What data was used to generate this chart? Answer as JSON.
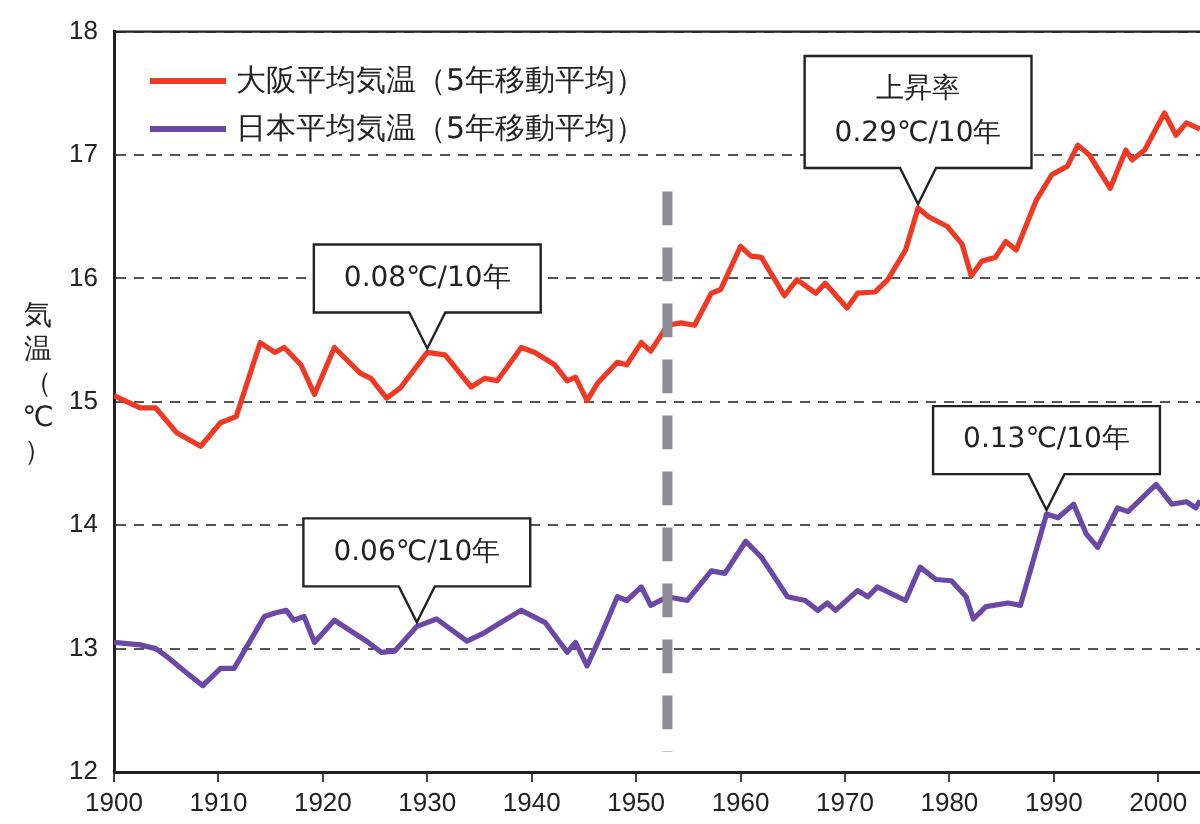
{
  "chart_data": {
    "type": "line",
    "ylabel": "気温（℃）",
    "series": [
      {
        "name": "大阪平均気温（5年移動平均）",
        "color": "#ee3a24",
        "x": [
          1900,
          1902.5,
          1904,
          1906,
          1908.3,
          1910.2,
          1911.7,
          1914,
          1915.4,
          1916.3,
          1917.9,
          1919.2,
          1921.1,
          1923.6,
          1924.6,
          1926.1,
          1927.4,
          1930,
          1931.7,
          1934.2,
          1935.5,
          1936.7,
          1939,
          1940.3,
          1942.2,
          1943.4,
          1944.2,
          1945.3,
          1946.3,
          1948.2,
          1949.1,
          1950.5,
          1951.4,
          1953,
          1954.3,
          1955.6,
          1957.2,
          1958.1,
          1960,
          1961,
          1962,
          1964.2,
          1965.4,
          1967.2,
          1968.1,
          1970.2,
          1971.2,
          1972.9,
          1974.1,
          1975.8,
          1977,
          1978,
          1979.8,
          1981.2,
          1982.1,
          1983.1,
          1984.4,
          1985.4,
          1986.4,
          1988.3,
          1989.8,
          1991.3,
          1992.3,
          1993.4,
          1995.4,
          1996.9,
          1997.5,
          1998.7,
          2000.6,
          2001.7,
          2002.7,
          2004
        ],
        "values": [
          15.05,
          14.95,
          14.95,
          14.75,
          14.64,
          14.83,
          14.88,
          15.48,
          15.4,
          15.44,
          15.3,
          15.06,
          15.44,
          15.23,
          15.19,
          15.03,
          15.11,
          15.4,
          15.38,
          15.12,
          15.19,
          15.17,
          15.44,
          15.4,
          15.3,
          15.17,
          15.2,
          15.01,
          15.15,
          15.32,
          15.3,
          15.48,
          15.41,
          15.62,
          15.64,
          15.62,
          15.88,
          15.91,
          16.26,
          16.18,
          16.17,
          15.86,
          15.99,
          15.88,
          15.96,
          15.76,
          15.88,
          15.89,
          15.99,
          16.23,
          16.57,
          16.5,
          16.42,
          16.28,
          16.02,
          16.14,
          16.17,
          16.3,
          16.23,
          16.63,
          16.84,
          16.91,
          17.08,
          17.0,
          16.73,
          17.04,
          16.96,
          17.04,
          17.34,
          17.16,
          17.26,
          17.21
        ]
      },
      {
        "name": "日本平均気温（5年移動平均）",
        "color": "#6a48a6",
        "x": [
          1900,
          1902.5,
          1904,
          1905,
          1907,
          1908.5,
          1910.2,
          1911.5,
          1914.4,
          1915.5,
          1916.5,
          1917.2,
          1918.2,
          1919.2,
          1921.1,
          1924.2,
          1925.6,
          1926.9,
          1929,
          1930.9,
          1933.8,
          1935.5,
          1937,
          1939,
          1941.3,
          1943.4,
          1944.2,
          1945.3,
          1946.6,
          1948.2,
          1949.1,
          1950.5,
          1951.4,
          1953,
          1954.9,
          1957.2,
          1958.5,
          1960.5,
          1962,
          1964.5,
          1966.2,
          1967.4,
          1968.3,
          1969.1,
          1971.2,
          1972.2,
          1973.1,
          1975.8,
          1977.2,
          1978.7,
          1980.2,
          1981.6,
          1982.3,
          1983.5,
          1985.6,
          1986.8,
          1989.3,
          1990.4,
          1991.9,
          1993.1,
          1994.2,
          1996.1,
          1997.1,
          1999.8,
          2001.3,
          2002.7,
          2003.6,
          2004
        ],
        "values": [
          13.05,
          13.03,
          13.0,
          12.94,
          12.8,
          12.7,
          12.84,
          12.84,
          13.26,
          13.29,
          13.31,
          13.23,
          13.26,
          13.05,
          13.23,
          13.06,
          12.97,
          12.98,
          13.18,
          13.24,
          13.06,
          13.13,
          13.21,
          13.31,
          13.21,
          12.97,
          13.05,
          12.86,
          13.1,
          13.42,
          13.39,
          13.5,
          13.35,
          13.42,
          13.39,
          13.63,
          13.61,
          13.87,
          13.74,
          13.42,
          13.39,
          13.31,
          13.37,
          13.31,
          13.47,
          13.42,
          13.5,
          13.39,
          13.66,
          13.56,
          13.55,
          13.42,
          13.24,
          13.34,
          13.37,
          13.35,
          14.09,
          14.06,
          14.17,
          13.93,
          13.82,
          14.14,
          14.11,
          14.33,
          14.17,
          14.19,
          14.14,
          14.2
        ]
      }
    ],
    "xlim": [
      1900,
      2004
    ],
    "xticks": [
      1900,
      1910,
      1920,
      1930,
      1940,
      1950,
      1960,
      1970,
      1980,
      1990,
      2000
    ],
    "ylim": [
      12,
      18
    ],
    "yticks": [
      12,
      13,
      14,
      15,
      16,
      17,
      18
    ],
    "grid": "y",
    "legend": "top left",
    "marker": "none",
    "line_style": "solid",
    "ref_lines": [
      {
        "axis": "x",
        "value": 1953,
        "color": "#8c8c96",
        "line_style": "dashed"
      }
    ],
    "annotations": [
      {
        "text": "0.08℃/10年",
        "x": 1930,
        "y": 15.4
      },
      {
        "text": "0.06℃/10年",
        "x": 1929,
        "y": 13.18
      },
      {
        "text": "0.13℃/10年",
        "x": 1989.3,
        "y": 14.09
      },
      {
        "text": "上昇率\n0.29℃/10年",
        "x": 1977,
        "y": 16.57
      }
    ]
  }
}
